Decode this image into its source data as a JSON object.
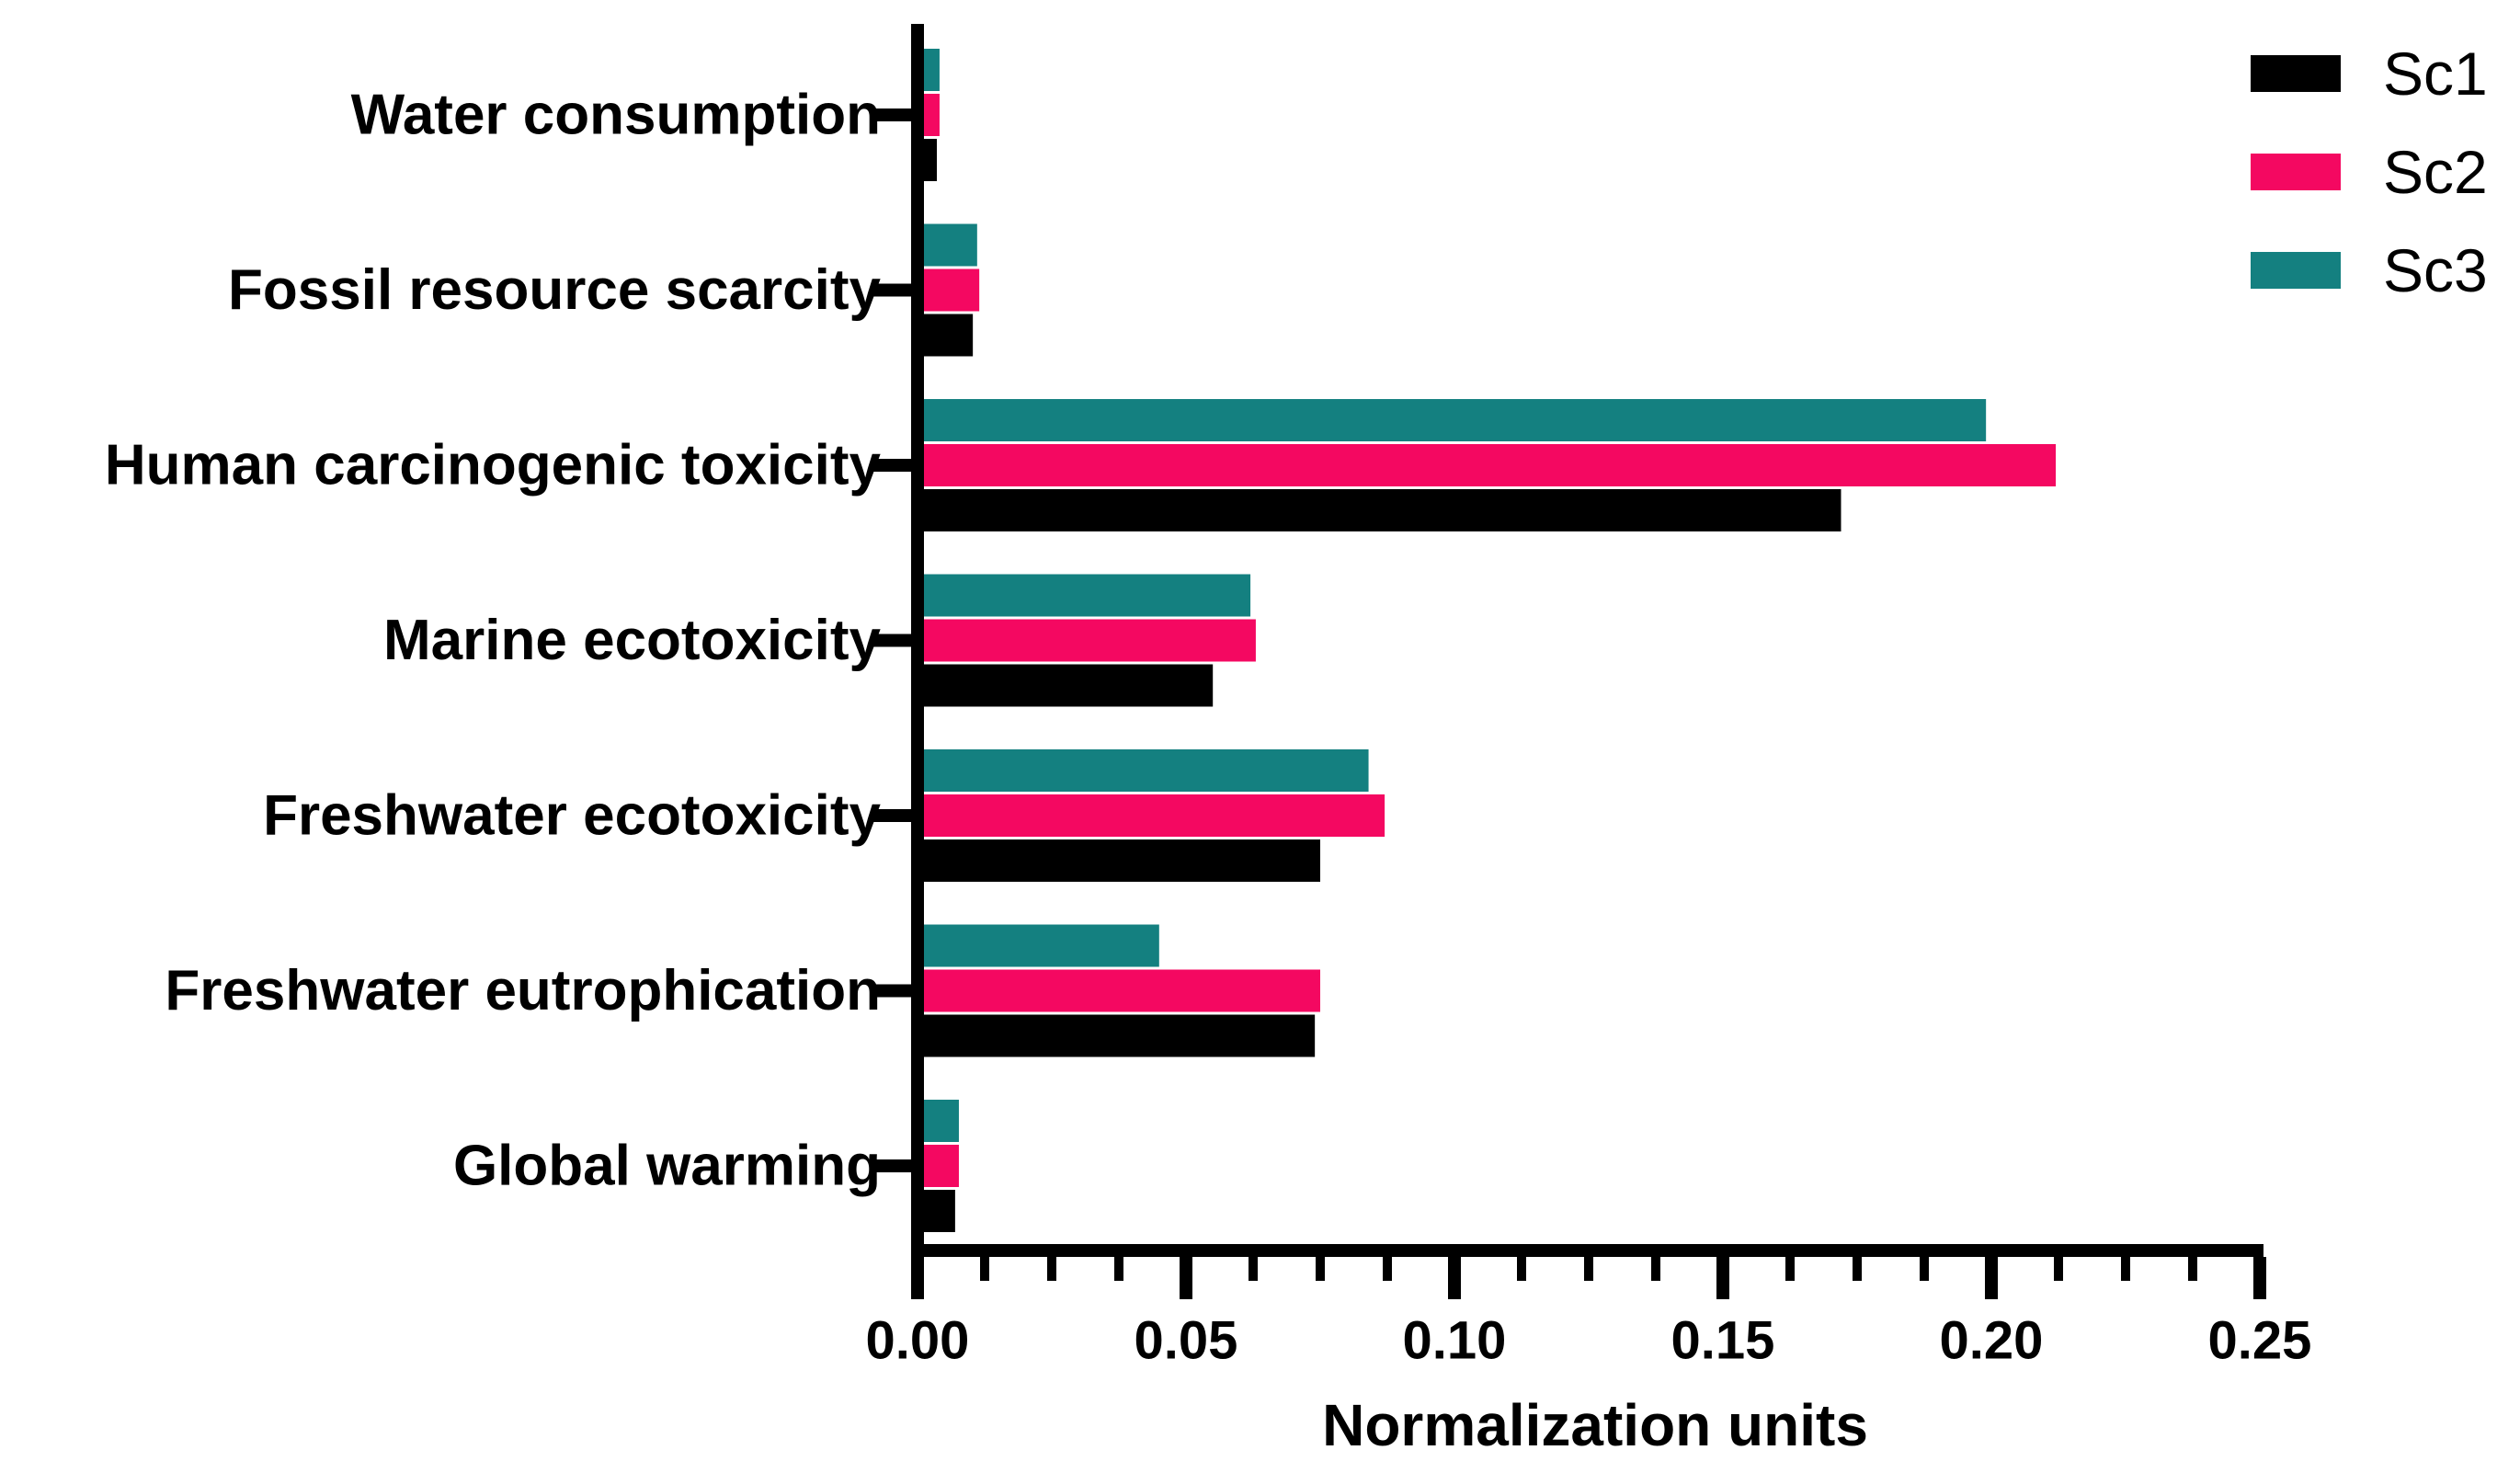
{
  "chart_data": {
    "type": "bar",
    "orientation": "horizontal",
    "categories": [
      "Water consumption",
      "Fossil resource scarcity",
      "Human carcinogenic toxicity",
      "Marine ecotoxicity",
      "Freshwater ecotoxicity",
      "Freshwater eutrophication",
      "Global warming"
    ],
    "series": [
      {
        "name": "Sc1",
        "color": "#000000",
        "values": [
          0.0036,
          0.0103,
          0.172,
          0.055,
          0.075,
          0.074,
          0.007
        ]
      },
      {
        "name": "Sc2",
        "color": "#F40861",
        "values": [
          0.0041,
          0.0115,
          0.212,
          0.063,
          0.087,
          0.075,
          0.0077
        ]
      },
      {
        "name": "Sc3",
        "color": "#148080",
        "values": [
          0.0041,
          0.0111,
          0.199,
          0.062,
          0.084,
          0.045,
          0.0077
        ]
      }
    ],
    "bar_visual_order_top_to_bottom": [
      "Sc3",
      "Sc2",
      "Sc1"
    ],
    "xlabel": "Normalization units",
    "xlim": [
      0,
      0.25
    ],
    "x_tick_labels": [
      "0.00",
      "0.05",
      "0.10",
      "0.15",
      "0.20",
      "0.25"
    ],
    "x_major_tick_step": 0.05,
    "x_minor_tick_step": 0.0125,
    "grid": false,
    "legend_position": "top-right",
    "axis_color": "#000000",
    "background_color": "#FFFFFF"
  }
}
